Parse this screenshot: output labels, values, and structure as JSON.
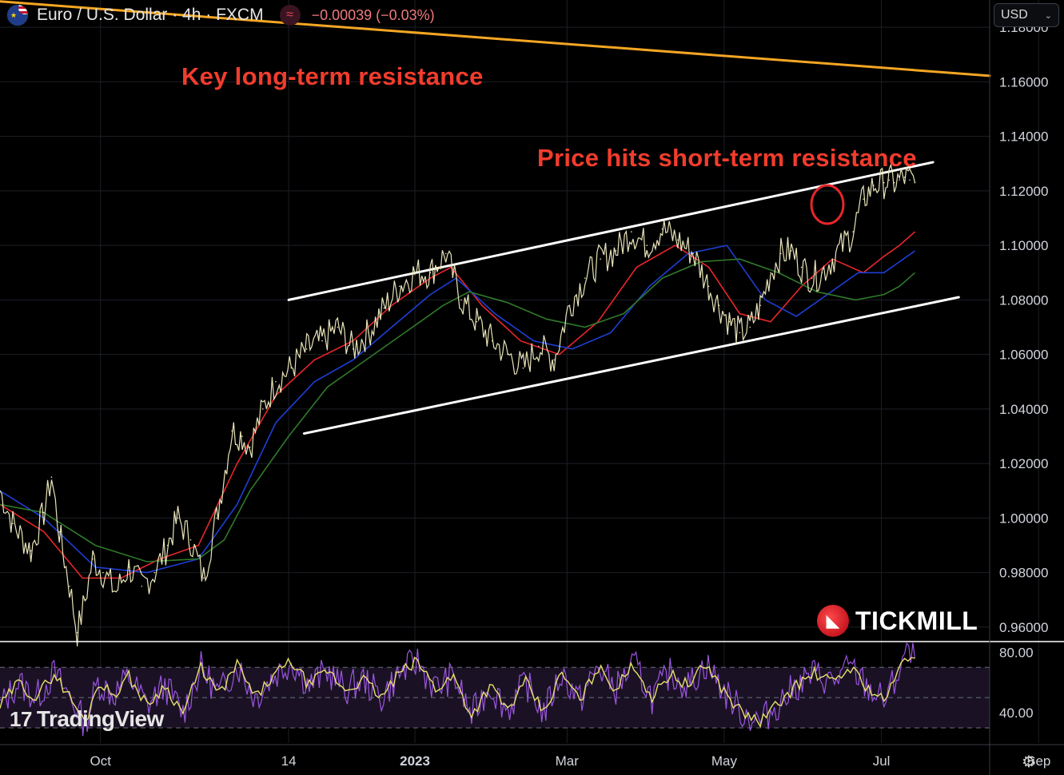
{
  "header": {
    "symbol": "Euro / U.S. Dollar · 4h · FXCM",
    "change": "−0.00039 (−0.03%)",
    "currency": "USD",
    "flag_icon": "eur-usd-flag-icon",
    "indicator_icon": "wave-icon"
  },
  "annotations": {
    "long_term": "Key long-term resistance",
    "short_term": "Price hits short-term resistance"
  },
  "branding": {
    "tradingview": "TradingView",
    "tickmill": "TICKMILL"
  },
  "colors": {
    "background": "#000000",
    "price": "#e8e4b8",
    "ema_fast": "#e8262b",
    "ema_mid": "#1d3fd6",
    "ema_slow": "#2f7a2a",
    "long_term_line": "#f5a623",
    "channel": "#ffffff",
    "annotation": "#f23c2d",
    "rsi_fast": "#9b55e0",
    "rsi_slow": "#e8e06a"
  },
  "chart_data": {
    "type": "line",
    "title": "Euro / U.S. Dollar · 4h · FXCM",
    "x_ticks": [
      "Oct",
      "14",
      "2023",
      "Mar",
      "May",
      "Jul",
      "Sep"
    ],
    "x_tick_days": [
      122,
      195,
      244,
      303,
      364,
      425,
      486
    ],
    "y_ticks": [
      "1.18000",
      "1.16000",
      "1.14000",
      "1.12000",
      "1.10000",
      "1.08000",
      "1.06000",
      "1.04000",
      "1.02000",
      "1.00000",
      "0.98000",
      "0.96000"
    ],
    "ylim": [
      0.955,
      1.19
    ],
    "xlim": [
      83,
      467
    ],
    "series": [
      {
        "name": "EUR/USD",
        "x": [
          83,
          88,
          95,
          100,
          103,
          106,
          110,
          113,
          116,
          119,
          123,
          128,
          133,
          138,
          143,
          148,
          152,
          157,
          162,
          167,
          173,
          177,
          180,
          185,
          190,
          196,
          202,
          208,
          214,
          220,
          226,
          232,
          238,
          244,
          250,
          256,
          262,
          268,
          274,
          280,
          286,
          292,
          298,
          304,
          310,
          316,
          322,
          328,
          334,
          340,
          346,
          352,
          358,
          362,
          366,
          370,
          374,
          378,
          382,
          386,
          390,
          394,
          398,
          402,
          406,
          410,
          414,
          418,
          422,
          426,
          428,
          430,
          432,
          434,
          436,
          438
        ],
        "values": [
          1.01,
          0.998,
          0.988,
          1.002,
          1.015,
          0.995,
          0.975,
          0.958,
          0.97,
          0.985,
          0.98,
          0.973,
          0.982,
          0.975,
          0.98,
          0.99,
          1.0,
          0.992,
          0.978,
          1.0,
          1.032,
          1.03,
          1.026,
          1.04,
          1.05,
          1.055,
          1.062,
          1.065,
          1.07,
          1.062,
          1.068,
          1.077,
          1.085,
          1.09,
          1.09,
          1.097,
          1.08,
          1.072,
          1.065,
          1.06,
          1.055,
          1.063,
          1.058,
          1.078,
          1.088,
          1.095,
          1.098,
          1.105,
          1.1,
          1.106,
          1.102,
          1.097,
          1.085,
          1.078,
          1.072,
          1.068,
          1.07,
          1.078,
          1.09,
          1.097,
          1.098,
          1.092,
          1.088,
          1.09,
          1.095,
          1.1,
          1.105,
          1.117,
          1.122,
          1.123,
          1.124,
          1.123,
          1.124,
          1.125,
          1.124,
          1.123
        ]
      },
      {
        "name": "EMA fast",
        "x": [
          83,
          100,
          115,
          130,
          145,
          160,
          175,
          190,
          205,
          220,
          235,
          250,
          258,
          270,
          285,
          300,
          315,
          330,
          345,
          358,
          370,
          382,
          394,
          406,
          418,
          426,
          432,
          438
        ],
        "values": [
          1.005,
          0.995,
          0.978,
          0.978,
          0.985,
          0.99,
          1.02,
          1.045,
          1.058,
          1.065,
          1.078,
          1.088,
          1.092,
          1.078,
          1.065,
          1.06,
          1.072,
          1.092,
          1.1,
          1.092,
          1.075,
          1.072,
          1.085,
          1.095,
          1.09,
          1.096,
          1.1,
          1.105
        ]
      },
      {
        "name": "EMA mid",
        "x": [
          83,
          100,
          120,
          140,
          160,
          175,
          190,
          205,
          220,
          235,
          250,
          260,
          275,
          290,
          305,
          320,
          335,
          350,
          365,
          380,
          392,
          404,
          416,
          426,
          432,
          438
        ],
        "values": [
          1.01,
          1.0,
          0.982,
          0.98,
          0.985,
          1.005,
          1.035,
          1.05,
          1.058,
          1.07,
          1.082,
          1.088,
          1.075,
          1.065,
          1.062,
          1.068,
          1.085,
          1.097,
          1.1,
          1.08,
          1.074,
          1.082,
          1.09,
          1.09,
          1.094,
          1.098
        ]
      },
      {
        "name": "EMA slow",
        "x": [
          83,
          100,
          120,
          140,
          160,
          170,
          180,
          195,
          210,
          225,
          240,
          255,
          265,
          280,
          295,
          310,
          325,
          340,
          355,
          370,
          385,
          400,
          415,
          426,
          432,
          438
        ],
        "values": [
          1.005,
          1.002,
          0.99,
          0.984,
          0.985,
          0.992,
          1.01,
          1.03,
          1.048,
          1.058,
          1.068,
          1.078,
          1.083,
          1.079,
          1.073,
          1.07,
          1.075,
          1.088,
          1.094,
          1.095,
          1.09,
          1.083,
          1.08,
          1.082,
          1.085,
          1.09
        ]
      }
    ],
    "trendlines": [
      {
        "name": "long-term resistance",
        "x": [
          83,
          467
        ],
        "values": [
          1.1895,
          1.1622
        ]
      },
      {
        "name": "channel top",
        "x": [
          195,
          445
        ],
        "values": [
          1.08,
          1.1305
        ]
      },
      {
        "name": "channel bottom",
        "x": [
          201,
          455
        ],
        "values": [
          1.031,
          1.081
        ]
      }
    ],
    "rsi": {
      "y_ticks": [
        "80.00",
        "40.00"
      ],
      "ylim": [
        20,
        86
      ],
      "levels": [
        70,
        30
      ],
      "x": [
        83,
        90,
        97,
        104,
        111,
        116,
        121,
        127,
        133,
        140,
        147,
        154,
        161,
        168,
        175,
        182,
        189,
        196,
        203,
        210,
        217,
        224,
        231,
        238,
        245,
        252,
        259,
        266,
        273,
        280,
        287,
        294,
        301,
        308,
        315,
        322,
        329,
        336,
        343,
        350,
        357,
        364,
        371,
        378,
        385,
        392,
        399,
        406,
        413,
        420,
        426,
        430,
        434,
        438
      ],
      "values": [
        44,
        60,
        50,
        66,
        48,
        33,
        60,
        52,
        64,
        45,
        58,
        40,
        70,
        52,
        72,
        50,
        64,
        74,
        58,
        68,
        55,
        62,
        50,
        66,
        74,
        56,
        64,
        38,
        58,
        42,
        60,
        40,
        66,
        48,
        70,
        56,
        72,
        50,
        66,
        58,
        72,
        54,
        40,
        34,
        46,
        58,
        66,
        60,
        70,
        56,
        48,
        60,
        78,
        76
      ]
    }
  }
}
